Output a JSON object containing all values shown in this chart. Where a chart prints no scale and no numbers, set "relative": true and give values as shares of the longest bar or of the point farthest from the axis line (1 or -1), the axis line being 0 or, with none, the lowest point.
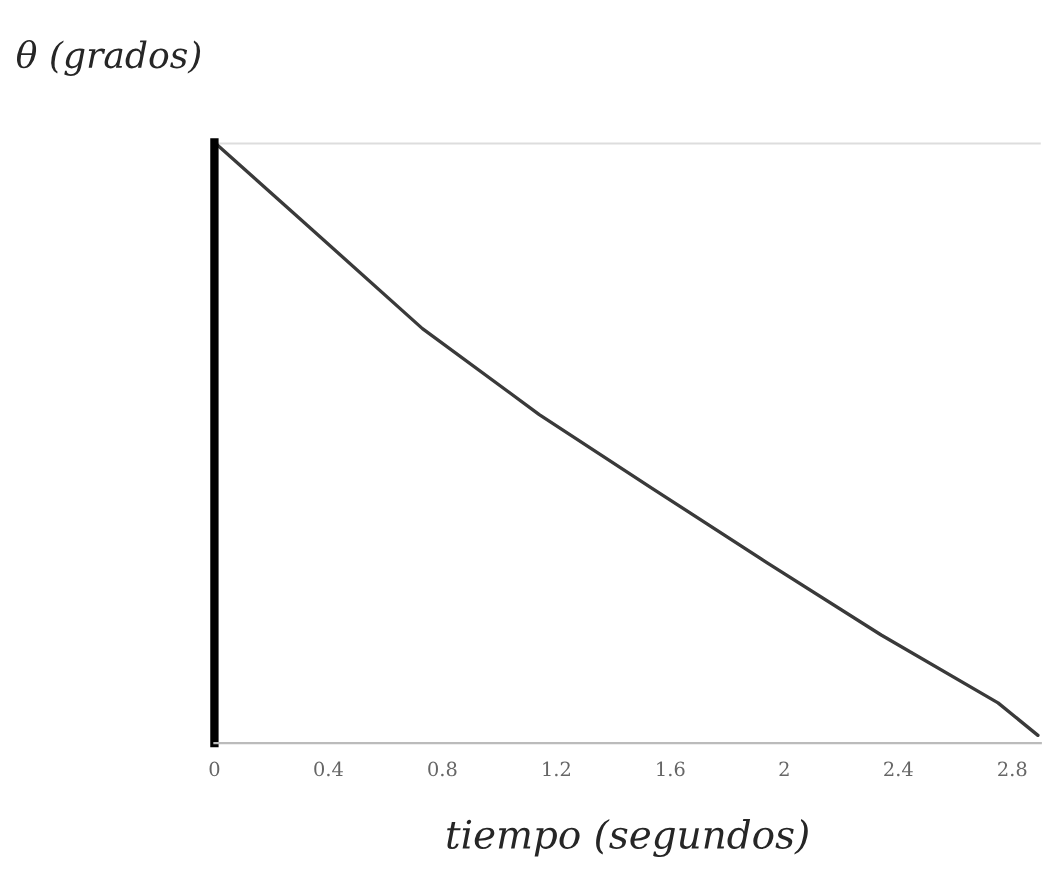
{
  "chart_data": {
    "type": "line",
    "relative": true,
    "xlabel": "tiempo (segundos)",
    "ylabel": "θ (grados)",
    "x": [
      0,
      0.3,
      0.73,
      1.14,
      1.54,
      1.94,
      2.34,
      2.75,
      2.89
    ],
    "series": [
      {
        "color": "#3a3a3a",
        "values": [
          1.0,
          0.873,
          0.69,
          0.547,
          0.423,
          0.3,
          0.18,
          0.067,
          0.013
        ]
      }
    ],
    "xlim": [
      0,
      2.9
    ],
    "xticks": [
      0,
      0.4,
      0.8,
      1.2,
      1.6,
      2,
      2.4,
      2.8
    ],
    "grid": false,
    "legend": false
  }
}
